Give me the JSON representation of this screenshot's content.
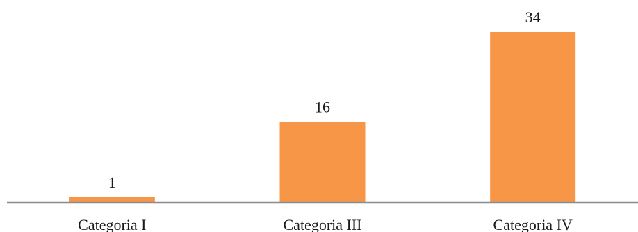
{
  "colors": {
    "bar": "#F79646",
    "axis": "#8c8c8c",
    "text": "#1a1a1a"
  },
  "chart_data": {
    "type": "bar",
    "title": "",
    "xlabel": "",
    "ylabel": "",
    "categories": [
      "Categoria I",
      "Categoria III",
      "Categoria IV"
    ],
    "values": [
      1,
      16,
      34
    ],
    "data_labels": [
      "1",
      "16",
      "34"
    ],
    "ylim": [
      0,
      34
    ],
    "grid": false,
    "legend": "none"
  }
}
